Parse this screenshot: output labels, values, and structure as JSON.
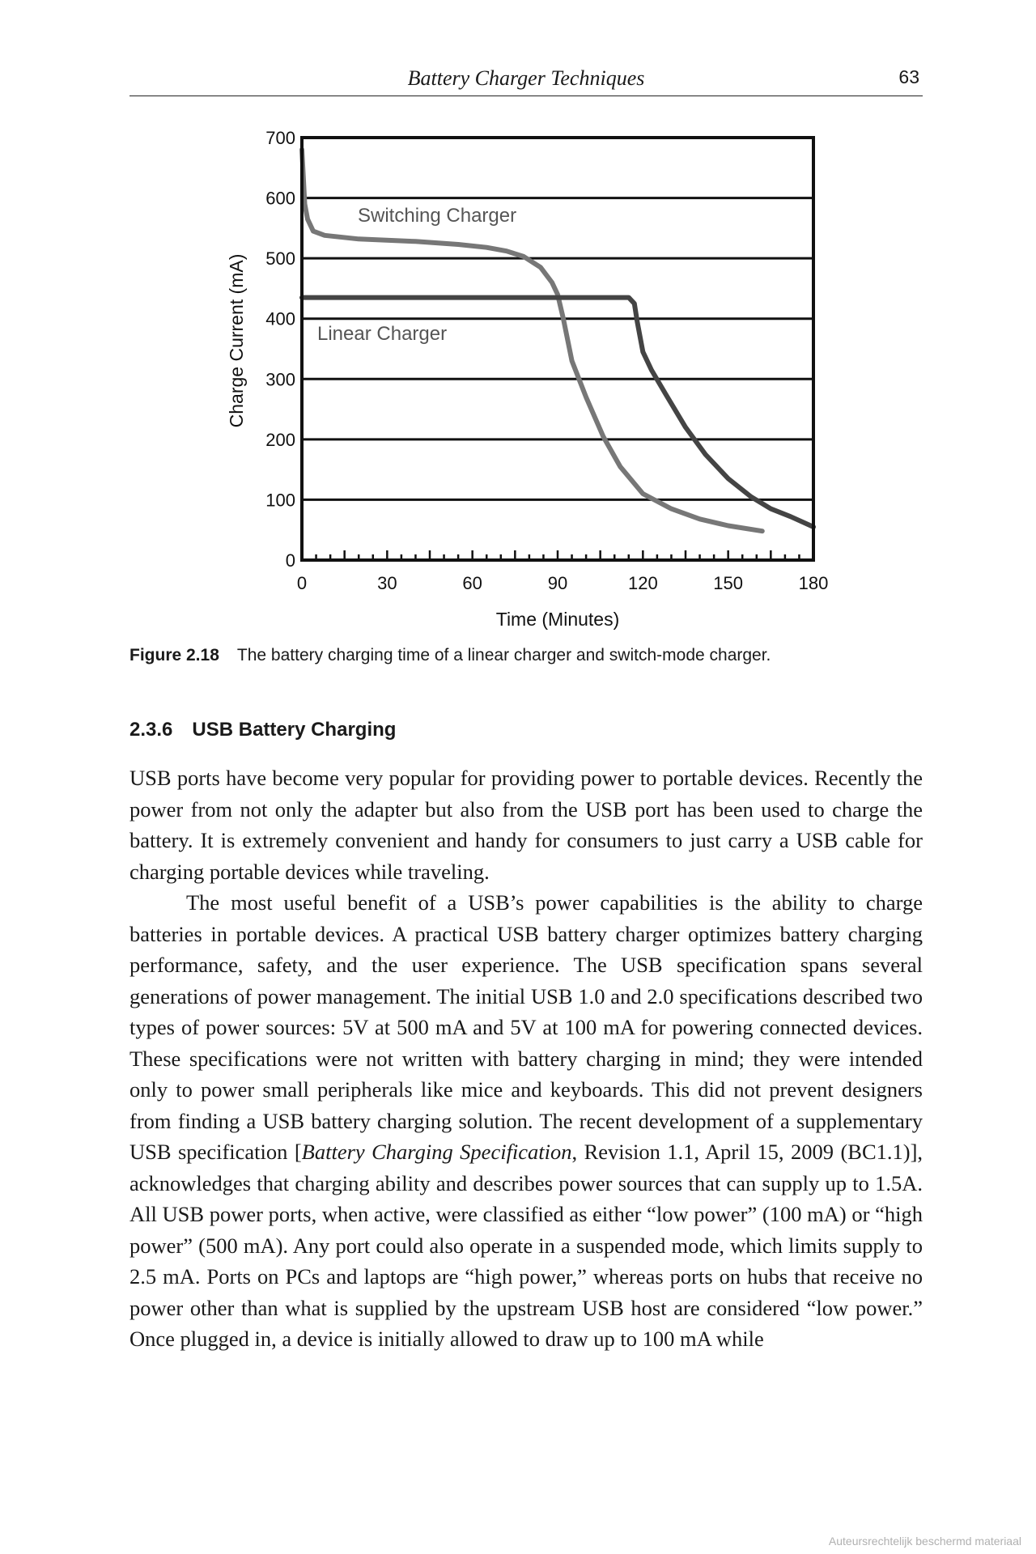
{
  "header": {
    "running_title": "Battery Charger Techniques",
    "page_number": "63"
  },
  "chart_data": {
    "type": "line",
    "xlabel": "Time (Minutes)",
    "ylabel": "Charge Current (mA)",
    "xlim": [
      0,
      180
    ],
    "ylim": [
      0,
      700
    ],
    "x_ticks": [
      0,
      30,
      60,
      90,
      120,
      150,
      180
    ],
    "y_ticks": [
      0,
      100,
      200,
      300,
      400,
      500,
      600,
      700
    ],
    "grid": "horizontal",
    "series": [
      {
        "name": "Switching Charger",
        "color": "#777777",
        "points": [
          [
            0,
            680
          ],
          [
            1,
            590
          ],
          [
            2,
            565
          ],
          [
            4,
            545
          ],
          [
            8,
            538
          ],
          [
            20,
            532
          ],
          [
            40,
            528
          ],
          [
            55,
            523
          ],
          [
            65,
            518
          ],
          [
            72,
            512
          ],
          [
            78,
            503
          ],
          [
            84,
            485
          ],
          [
            88,
            460
          ],
          [
            90,
            440
          ],
          [
            92,
            400
          ],
          [
            95,
            330
          ],
          [
            100,
            270
          ],
          [
            106,
            205
          ],
          [
            112,
            155
          ],
          [
            120,
            110
          ],
          [
            130,
            85
          ],
          [
            140,
            68
          ],
          [
            150,
            57
          ],
          [
            162,
            48
          ]
        ]
      },
      {
        "name": "Linear Charger",
        "color": "#444444",
        "points": [
          [
            0,
            435
          ],
          [
            115,
            435
          ],
          [
            117,
            425
          ],
          [
            118,
            395
          ],
          [
            120,
            345
          ],
          [
            123,
            315
          ],
          [
            128,
            275
          ],
          [
            135,
            220
          ],
          [
            142,
            175
          ],
          [
            150,
            135
          ],
          [
            158,
            105
          ],
          [
            165,
            85
          ],
          [
            172,
            72
          ],
          [
            180,
            55
          ]
        ]
      }
    ]
  },
  "caption": {
    "label": "Figure 2.18",
    "text": "The battery charging time of a linear charger and switch-mode charger."
  },
  "section": {
    "number": "2.3.6",
    "title": "USB Battery Charging"
  },
  "body": {
    "paragraph_1": "USB ports have become very popular for providing power to portable devices. Recently the power from not only the adapter but also from the USB port has been used to charge the battery. It is extremely convenient and handy for consumers to just carry a USB cable for charging portable devices while traveling.",
    "paragraph_2_before_citation": "The most useful benefit of a USB’s power capabilities is the ability to charge batteries in portable devices. A practical USB battery charger optimizes battery charging performance, safety, and the user experience. The USB specification spans several generations of power management. The initial USB 1.0 and 2.0 specifications described two types of power sources: 5V at 500 mA and 5V at 100 mA for powering connected devices. These specifications were not written with battery charging in mind; they were intended only to power small peripherals like mice and keyboards. This did not prevent designers from finding a USB battery charging solution. The recent development of a supplementary USB specification [",
    "citation_title": "Battery Charging Specification",
    "paragraph_2_after_citation": ", Revision 1.1, April 15, 2009 (BC1.1)], acknowledges that charging ability and describes power sources that can supply up to 1.5A. All USB power ports, when active, were classified as either “low power” (100 mA) or “high power” (500 mA). Any port could also operate in a suspended mode, which limits supply to 2.5 mA. Ports on PCs and laptops are “high power,” whereas ports on hubs that receive no power other than what is supplied by the upstream USB host are considered “low power.” Once plugged in, a device is initially allowed to draw up to 100 mA while"
  },
  "watermark": "Auteursrechtelijk beschermd materiaal"
}
